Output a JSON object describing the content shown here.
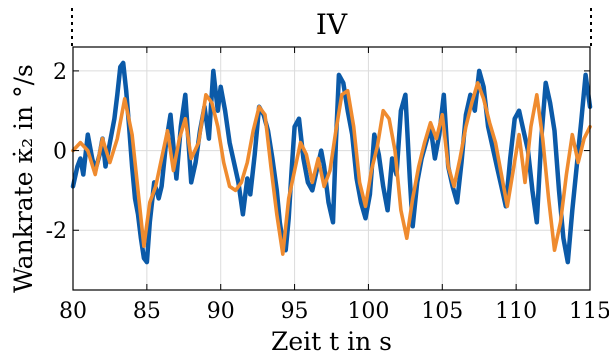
{
  "chart_data": {
    "type": "line",
    "title": "IV",
    "xlabel": "Zeit t in s",
    "ylabel": "Wankrate κ̇₂ in °/s",
    "xlim": [
      80,
      115
    ],
    "ylim": [
      -3.5,
      2.6
    ],
    "xticks": [
      80,
      85,
      90,
      95,
      100,
      105,
      110,
      115
    ],
    "yticks": [
      -2,
      0,
      2
    ],
    "grid": true,
    "series": [
      {
        "name": "",
        "color": "#0b5aa8",
        "x": [
          80.0,
          80.3,
          80.5,
          80.7,
          81.0,
          81.3,
          81.5,
          81.8,
          82.0,
          82.2,
          82.5,
          82.8,
          83.0,
          83.2,
          83.4,
          83.6,
          83.8,
          84.0,
          84.2,
          84.4,
          84.6,
          84.8,
          85.0,
          85.2,
          85.5,
          85.8,
          86.0,
          86.3,
          86.6,
          87.0,
          87.3,
          87.6,
          88.0,
          88.3,
          88.6,
          88.9,
          89.2,
          89.5,
          89.8,
          90.0,
          90.3,
          90.6,
          90.9,
          91.2,
          91.5,
          91.8,
          92.0,
          92.3,
          92.6,
          92.9,
          93.2,
          93.5,
          93.8,
          94.0,
          94.2,
          94.4,
          94.6,
          94.8,
          95.0,
          95.3,
          95.6,
          95.9,
          96.2,
          96.5,
          96.8,
          97.0,
          97.3,
          97.6,
          97.8,
          98.0,
          98.3,
          98.6,
          98.9,
          99.2,
          99.5,
          99.8,
          100.1,
          100.4,
          100.7,
          101.0,
          101.3,
          101.6,
          101.9,
          102.2,
          102.5,
          102.8,
          103.0,
          103.3,
          103.6,
          103.9,
          104.2,
          104.5,
          104.8,
          105.1,
          105.4,
          105.7,
          106.0,
          106.3,
          106.6,
          106.9,
          107.2,
          107.5,
          107.8,
          108.1,
          108.4,
          108.7,
          109.0,
          109.3,
          109.6,
          109.9,
          110.2,
          110.5,
          110.8,
          111.1,
          111.4,
          111.7,
          112.0,
          112.3,
          112.6,
          112.9,
          113.2,
          113.5,
          113.8,
          114.1,
          114.4,
          114.7,
          115.0
        ],
        "y": [
          -0.9,
          -0.4,
          -0.2,
          -0.6,
          0.4,
          -0.2,
          -0.5,
          -0.1,
          0.3,
          -0.4,
          0.2,
          0.8,
          1.4,
          2.1,
          2.2,
          1.5,
          0.6,
          -0.4,
          -1.2,
          -1.6,
          -2.2,
          -2.7,
          -2.8,
          -1.8,
          -0.8,
          -1.2,
          -0.9,
          0.2,
          0.9,
          -0.7,
          0.6,
          1.4,
          -0.8,
          -0.3,
          0.5,
          1.1,
          0.3,
          2.0,
          1.0,
          1.6,
          1.0,
          0.2,
          -0.3,
          -0.8,
          -1.6,
          -0.7,
          -1.1,
          -0.1,
          1.1,
          0.9,
          0.5,
          -0.2,
          -1.0,
          -1.8,
          -2.3,
          -2.5,
          -1.7,
          -0.5,
          0.6,
          0.8,
          -0.2,
          -0.8,
          -1.0,
          -0.5,
          0.0,
          -0.4,
          -1.3,
          -1.8,
          0.2,
          1.9,
          1.7,
          1.0,
          0.4,
          -0.7,
          -1.3,
          -1.7,
          -1.1,
          0.4,
          -0.1,
          -0.9,
          -1.5,
          -0.2,
          -0.6,
          1.0,
          1.4,
          -0.7,
          -1.9,
          -0.8,
          -0.2,
          0.2,
          0.6,
          -0.2,
          0.4,
          1.4,
          -0.4,
          -0.9,
          -1.3,
          -0.3,
          0.9,
          1.4,
          1.0,
          2.0,
          1.6,
          0.6,
          0.1,
          -0.4,
          -0.9,
          -1.4,
          -0.2,
          0.8,
          1.0,
          0.5,
          0.0,
          -1.0,
          -1.8,
          0.3,
          1.7,
          1.2,
          0.5,
          -1.0,
          -2.2,
          -2.8,
          -1.5,
          -0.4,
          0.7,
          1.9,
          1.1
        ],
        "linewidth": 4.5
      },
      {
        "name": "",
        "color": "#ef8b2f",
        "x": [
          80.0,
          80.5,
          81.0,
          81.5,
          82.0,
          82.5,
          83.0,
          83.5,
          84.0,
          84.4,
          84.8,
          85.2,
          85.6,
          86.0,
          86.4,
          86.8,
          87.2,
          87.6,
          88.0,
          88.5,
          89.0,
          89.4,
          89.8,
          90.2,
          90.6,
          91.0,
          91.4,
          91.8,
          92.2,
          92.6,
          93.0,
          93.4,
          93.8,
          94.2,
          94.6,
          95.0,
          95.4,
          95.8,
          96.2,
          96.6,
          97.0,
          97.4,
          97.8,
          98.2,
          98.6,
          99.0,
          99.4,
          99.8,
          100.2,
          100.6,
          101.0,
          101.4,
          101.8,
          102.2,
          102.6,
          103.0,
          103.4,
          103.8,
          104.2,
          104.6,
          105.0,
          105.4,
          105.8,
          106.2,
          106.6,
          107.0,
          107.4,
          107.8,
          108.2,
          108.6,
          109.0,
          109.4,
          109.8,
          110.2,
          110.6,
          111.0,
          111.4,
          111.8,
          112.2,
          112.6,
          113.0,
          113.4,
          113.8,
          114.2,
          114.6,
          115.0
        ],
        "y": [
          0.0,
          0.2,
          0.0,
          -0.6,
          0.3,
          -0.3,
          0.3,
          1.3,
          0.4,
          -1.0,
          -2.4,
          -1.3,
          -0.9,
          -0.2,
          0.5,
          -0.5,
          0.3,
          0.8,
          -0.2,
          0.2,
          1.4,
          1.2,
          0.6,
          -0.3,
          -0.9,
          -1.0,
          -0.8,
          -0.3,
          0.5,
          1.1,
          0.9,
          -0.4,
          -1.6,
          -2.6,
          -1.2,
          -0.5,
          0.2,
          -0.1,
          -0.8,
          -0.2,
          -0.9,
          -0.5,
          0.5,
          1.4,
          1.5,
          0.6,
          -0.8,
          -1.4,
          -0.5,
          0.1,
          1.0,
          0.8,
          0.0,
          -1.5,
          -2.2,
          -1.2,
          -0.4,
          0.2,
          0.7,
          0.3,
          0.9,
          -0.4,
          -0.9,
          -0.2,
          0.6,
          1.2,
          1.7,
          1.3,
          0.7,
          0.2,
          -0.6,
          -1.4,
          -0.5,
          0.4,
          -0.8,
          0.6,
          1.4,
          0.3,
          -1.2,
          -2.5,
          -1.8,
          -0.6,
          0.4,
          -0.3,
          0.3,
          0.6
        ],
        "linewidth": 3.6
      }
    ]
  }
}
